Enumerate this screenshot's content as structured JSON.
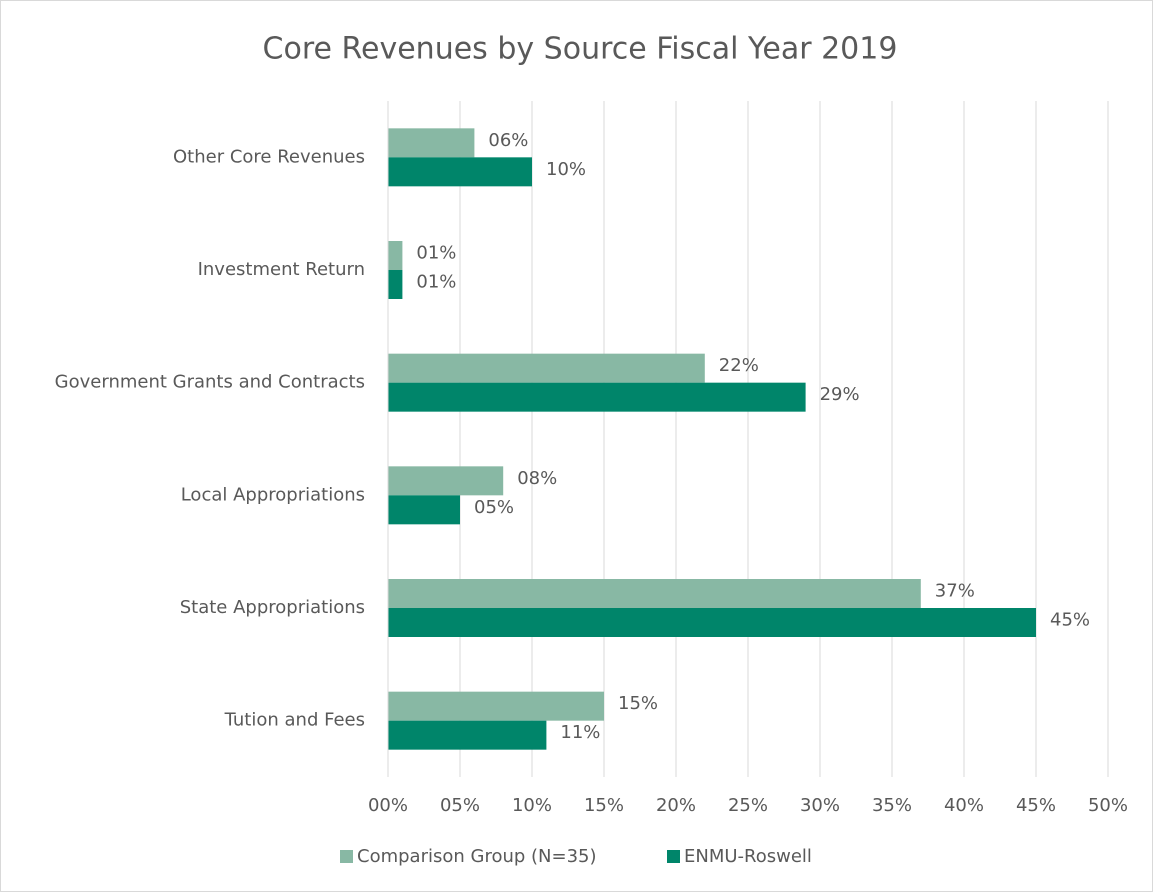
{
  "chart_data": {
    "type": "bar",
    "orientation": "horizontal",
    "title": "Core Revenues by Source Fiscal Year 2019",
    "categories": [
      "Other Core Revenues",
      "Investment Return",
      "Government Grants and Contracts",
      "Local Appropriations",
      "State Appropriations",
      "Tution and Fees"
    ],
    "series": [
      {
        "name": "Comparison Group (N=35)",
        "color": "#88b8a4",
        "values": [
          6,
          1,
          22,
          8,
          37,
          15
        ],
        "value_labels": [
          "06%",
          "01%",
          "22%",
          "08%",
          "37%",
          "15%"
        ]
      },
      {
        "name": "ENMU-Roswell",
        "color": "#00856a",
        "values": [
          10,
          1,
          29,
          5,
          45,
          11
        ],
        "value_labels": [
          "10%",
          "01%",
          "29%",
          "05%",
          "45%",
          "11%"
        ]
      }
    ],
    "xlim": [
      0,
      50
    ],
    "xticks": [
      {
        "value": 0,
        "label": "00%"
      },
      {
        "value": 5,
        "label": "05%"
      },
      {
        "value": 10,
        "label": "10%"
      },
      {
        "value": 15,
        "label": "15%"
      },
      {
        "value": 20,
        "label": "20%"
      },
      {
        "value": 25,
        "label": "25%"
      },
      {
        "value": 30,
        "label": "30%"
      },
      {
        "value": 35,
        "label": "35%"
      },
      {
        "value": 40,
        "label": "40%"
      },
      {
        "value": 45,
        "label": "45%"
      },
      {
        "value": 50,
        "label": "50%"
      }
    ],
    "grid": true,
    "legend": "bottom"
  }
}
